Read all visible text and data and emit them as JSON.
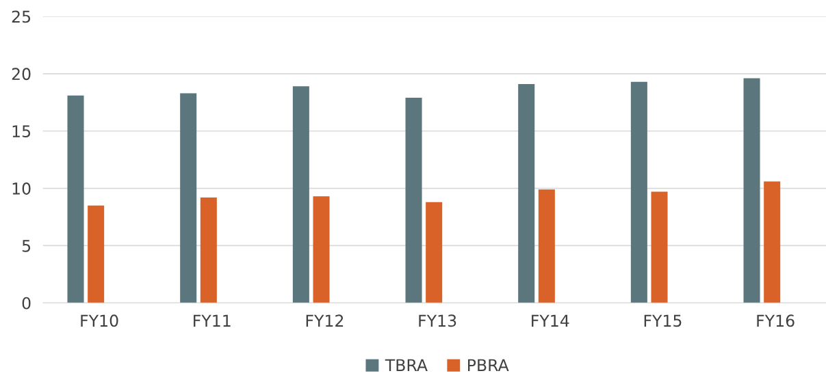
{
  "chart_data": {
    "type": "bar",
    "categories": [
      "FY10",
      "FY11",
      "FY12",
      "FY13",
      "FY14",
      "FY15",
      "FY16"
    ],
    "series": [
      {
        "name": "TBRA",
        "color": "#5b777d",
        "values": [
          18.1,
          18.3,
          18.9,
          17.9,
          19.1,
          19.3,
          19.6
        ]
      },
      {
        "name": "PBRA",
        "color": "#d96228",
        "values": [
          8.5,
          9.2,
          9.3,
          8.8,
          9.9,
          9.7,
          10.6
        ]
      }
    ],
    "ylim": [
      0,
      25
    ],
    "yticks": [
      0,
      5,
      10,
      15,
      20,
      25
    ],
    "grid": "y",
    "legend": "bottom"
  }
}
